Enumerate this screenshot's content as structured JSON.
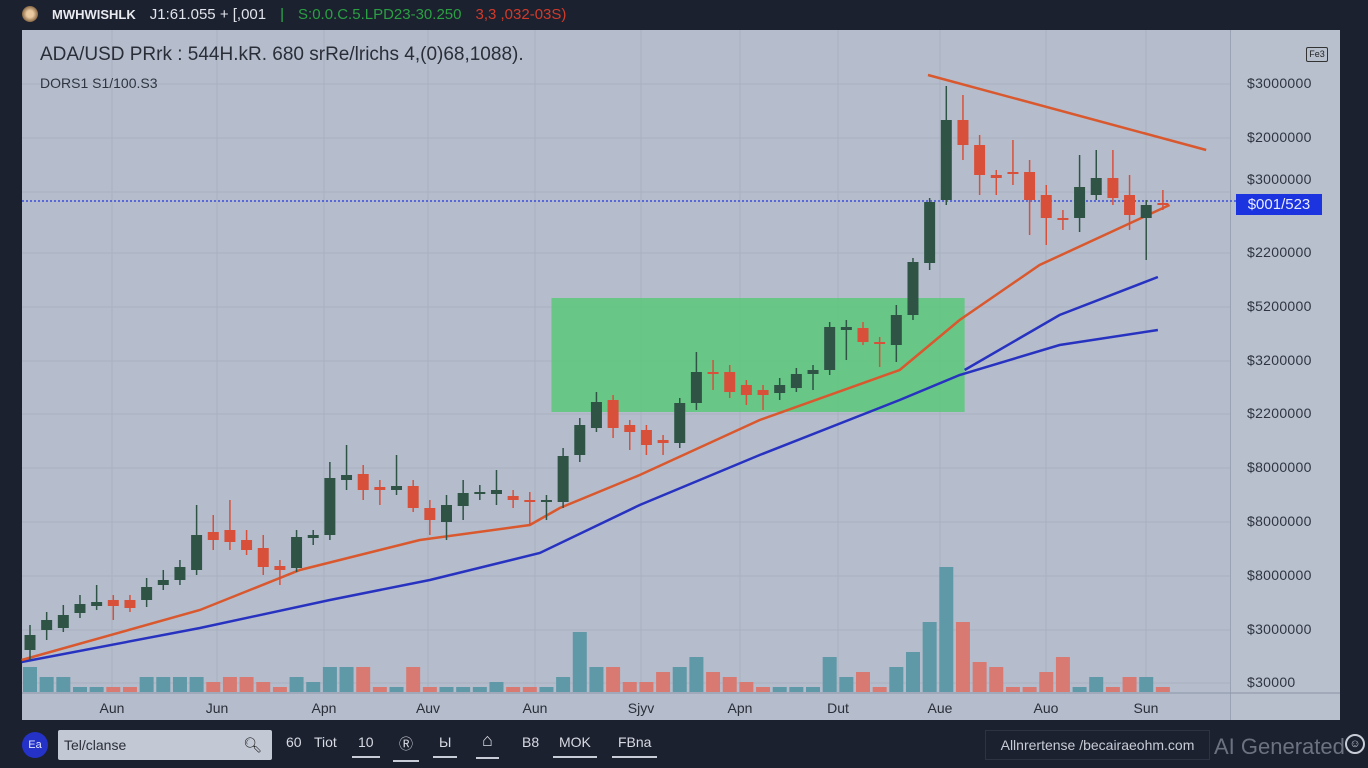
{
  "topbar": {
    "name": "MWHWISHLK",
    "price": "J1:61.055 + [,001",
    "separator": "|",
    "change_green": "S:0.0.C.5.LPD23-30.250",
    "change_red": "3,3 ,032-03S)"
  },
  "header": {
    "title": "ADA/USD  PRrk : 544H.kR. 680 srRe/lrichs 4,(0)68,1088).",
    "subtitle": "DORS1 S1/100.S3",
    "corner_button": "Fe3"
  },
  "y_axis_labels": [
    "$3000000",
    "$2000000",
    "$3000000",
    "$2200000",
    "$5200000",
    "$3200000",
    "$2200000",
    "$8000000",
    "$8000000",
    "$8000000",
    "$3000000",
    "$30000"
  ],
  "price_tag": "$001/523",
  "colors": {
    "up": "#2f5446",
    "down": "#d8503a",
    "ma_fast": "#d9582e",
    "ma_slow": "#2733c0",
    "zone": "#5ac87a",
    "price_line": "#2236e0",
    "vol_up": "#5f98a6",
    "vol_down": "#d97a72"
  },
  "chart_data": {
    "type": "candlestick",
    "x_tick_labels": [
      "Aun",
      "Jun",
      "Apn",
      "Auv",
      "Aun",
      "Sjyv",
      "Apn",
      "Dut",
      "Aue",
      "Auo",
      "Sun"
    ],
    "ylim": [
      0,
      64
    ],
    "grid": true,
    "ohlc": [
      [
        5.0,
        6.5,
        7.5,
        4.0
      ],
      [
        7.0,
        8.0,
        8.8,
        6.0
      ],
      [
        7.2,
        8.5,
        9.5,
        6.8
      ],
      [
        8.7,
        9.6,
        10.5,
        8.2
      ],
      [
        9.4,
        9.8,
        11.5,
        9.0
      ],
      [
        10.0,
        9.4,
        10.5,
        8.0
      ],
      [
        10.0,
        9.2,
        10.5,
        8.8
      ],
      [
        10.0,
        11.3,
        12.2,
        9.3
      ],
      [
        11.5,
        12.0,
        13.0,
        11.0
      ],
      [
        12.0,
        13.3,
        14.0,
        11.5
      ],
      [
        13.0,
        16.5,
        19.5,
        12.5
      ],
      [
        16.8,
        16.0,
        18.5,
        15.0
      ],
      [
        17.0,
        15.8,
        20.0,
        15.0
      ],
      [
        16.0,
        15.0,
        17.0,
        14.5
      ],
      [
        15.2,
        13.3,
        16.5,
        12.5
      ],
      [
        13.4,
        13.0,
        14.0,
        11.5
      ],
      [
        13.2,
        16.3,
        17.0,
        12.8
      ],
      [
        16.2,
        16.5,
        17.0,
        15.5
      ],
      [
        16.5,
        22.2,
        23.8,
        16.0
      ],
      [
        22.0,
        22.5,
        25.5,
        21.0
      ],
      [
        22.6,
        21.0,
        23.5,
        20.0
      ],
      [
        21.3,
        21.0,
        22.0,
        19.5
      ],
      [
        21.0,
        21.4,
        24.5,
        20.5
      ],
      [
        21.4,
        19.2,
        22.0,
        18.8
      ],
      [
        19.2,
        18.0,
        20.0,
        16.5
      ],
      [
        17.8,
        19.5,
        20.5,
        16.0
      ],
      [
        19.4,
        20.7,
        22.0,
        18.0
      ],
      [
        20.6,
        20.8,
        21.5,
        20.0
      ],
      [
        20.6,
        21.0,
        23.0,
        19.5
      ],
      [
        20.4,
        20.0,
        21.0,
        19.2
      ],
      [
        20.0,
        19.8,
        20.8,
        17.5
      ],
      [
        19.8,
        20.0,
        20.5,
        18.0
      ],
      [
        19.8,
        24.4,
        25.2,
        19.2
      ],
      [
        24.5,
        27.5,
        28.2,
        23.8
      ],
      [
        27.2,
        29.8,
        30.8,
        26.8
      ],
      [
        30.0,
        27.2,
        30.5,
        26.2
      ],
      [
        27.5,
        26.8,
        28.0,
        25.0
      ],
      [
        27.0,
        25.5,
        27.5,
        24.5
      ],
      [
        26.0,
        25.7,
        26.5,
        24.5
      ],
      [
        25.7,
        29.7,
        30.2,
        25.2
      ],
      [
        29.7,
        32.8,
        34.8,
        29.0
      ],
      [
        32.8,
        32.7,
        34.0,
        31.0
      ],
      [
        32.8,
        30.8,
        33.5,
        30.2
      ],
      [
        31.5,
        30.5,
        32.0,
        29.5
      ],
      [
        31.0,
        30.5,
        31.5,
        29.0
      ],
      [
        30.7,
        31.5,
        32.2,
        30.0
      ],
      [
        31.2,
        32.6,
        33.2,
        30.8
      ],
      [
        32.6,
        33.0,
        33.5,
        31.0
      ],
      [
        33.0,
        37.3,
        37.8,
        32.5
      ],
      [
        37.0,
        37.3,
        38.0,
        34.0
      ],
      [
        37.2,
        35.8,
        37.8,
        35.5
      ],
      [
        35.8,
        35.7,
        36.3,
        33.3
      ],
      [
        35.5,
        38.5,
        39.5,
        33.8
      ],
      [
        38.5,
        43.8,
        44.2,
        38.0
      ],
      [
        43.7,
        49.8,
        50.2,
        43.0
      ],
      [
        50.0,
        58.0,
        61.4,
        49.5
      ],
      [
        58.0,
        55.5,
        60.5,
        54.0
      ],
      [
        55.5,
        52.5,
        56.5,
        50.5
      ],
      [
        52.5,
        52.2,
        53.0,
        50.5
      ],
      [
        52.8,
        52.7,
        56.0,
        51.5
      ],
      [
        52.8,
        50.0,
        54.0,
        46.5
      ],
      [
        50.5,
        48.2,
        51.5,
        45.5
      ],
      [
        48.2,
        48.0,
        49.0,
        47.0
      ],
      [
        48.2,
        51.3,
        54.5,
        46.8
      ],
      [
        50.5,
        52.2,
        55.0,
        50.0
      ],
      [
        52.2,
        50.2,
        55.0,
        49.5
      ],
      [
        50.5,
        48.5,
        52.5,
        47.0
      ],
      [
        48.2,
        49.5,
        50.0,
        44.0
      ],
      [
        49.7,
        49.5,
        51.0,
        49.0
      ]
    ],
    "volume": [
      5,
      3,
      3,
      1,
      1,
      1,
      1,
      3,
      3,
      3,
      3,
      2,
      3,
      3,
      2,
      1,
      3,
      2,
      5,
      5,
      5,
      1,
      1,
      5,
      1,
      1,
      1,
      1,
      2,
      1,
      1,
      1,
      3,
      12,
      5,
      5,
      2,
      2,
      4,
      5,
      7,
      4,
      3,
      2,
      1,
      1,
      1,
      1,
      7,
      3,
      4,
      1,
      5,
      8,
      14,
      25,
      14,
      6,
      5,
      1,
      1,
      4,
      7,
      1,
      3,
      1,
      3,
      3,
      1
    ],
    "ma_fast": [
      [
        -0.5,
        4.0
      ],
      [
        10.2,
        9.0
      ],
      [
        16.2,
        13.0
      ],
      [
        23.4,
        16.0
      ],
      [
        30,
        17.5
      ],
      [
        31.8,
        19.2
      ],
      [
        36.6,
        22.5
      ],
      [
        43.8,
        28.0
      ],
      [
        52.2,
        33.0
      ],
      [
        55.8,
        38.0
      ],
      [
        60.6,
        43.5
      ],
      [
        68.4,
        49.5
      ]
    ],
    "ma_slow": [
      [
        -0.5,
        3.8
      ],
      [
        10.2,
        7.2
      ],
      [
        18,
        10.0
      ],
      [
        24,
        12.0
      ],
      [
        30.6,
        14.7
      ],
      [
        36.6,
        19.5
      ],
      [
        43.8,
        24.5
      ],
      [
        52.2,
        30.0
      ],
      [
        55.8,
        32.5
      ],
      [
        61.8,
        35.5
      ],
      [
        67.7,
        37.0
      ]
    ],
    "ma_slow_branch": [
      [
        56.1,
        33.0
      ],
      [
        61.8,
        38.5
      ],
      [
        67.7,
        42.3
      ]
    ],
    "trendline": [
      [
        53.9,
        62.5
      ],
      [
        70.6,
        55.0
      ]
    ],
    "zone": {
      "from_index": 31.3,
      "to_index": 56.1,
      "low": 28.8,
      "high": 40.2
    },
    "current_price_level": 49.9
  },
  "toolbar": {
    "circle_label": "Ea",
    "search_value": "Tel/clanse",
    "interval": "60",
    "tool_text": "Tiot",
    "tools": [
      "10",
      "Ⓡ",
      "Ы",
      "⌂",
      "B8",
      "MOK",
      "FBna"
    ],
    "url": "Allnrertense /becairaeohm.com",
    "watermark": "AI Generated"
  }
}
